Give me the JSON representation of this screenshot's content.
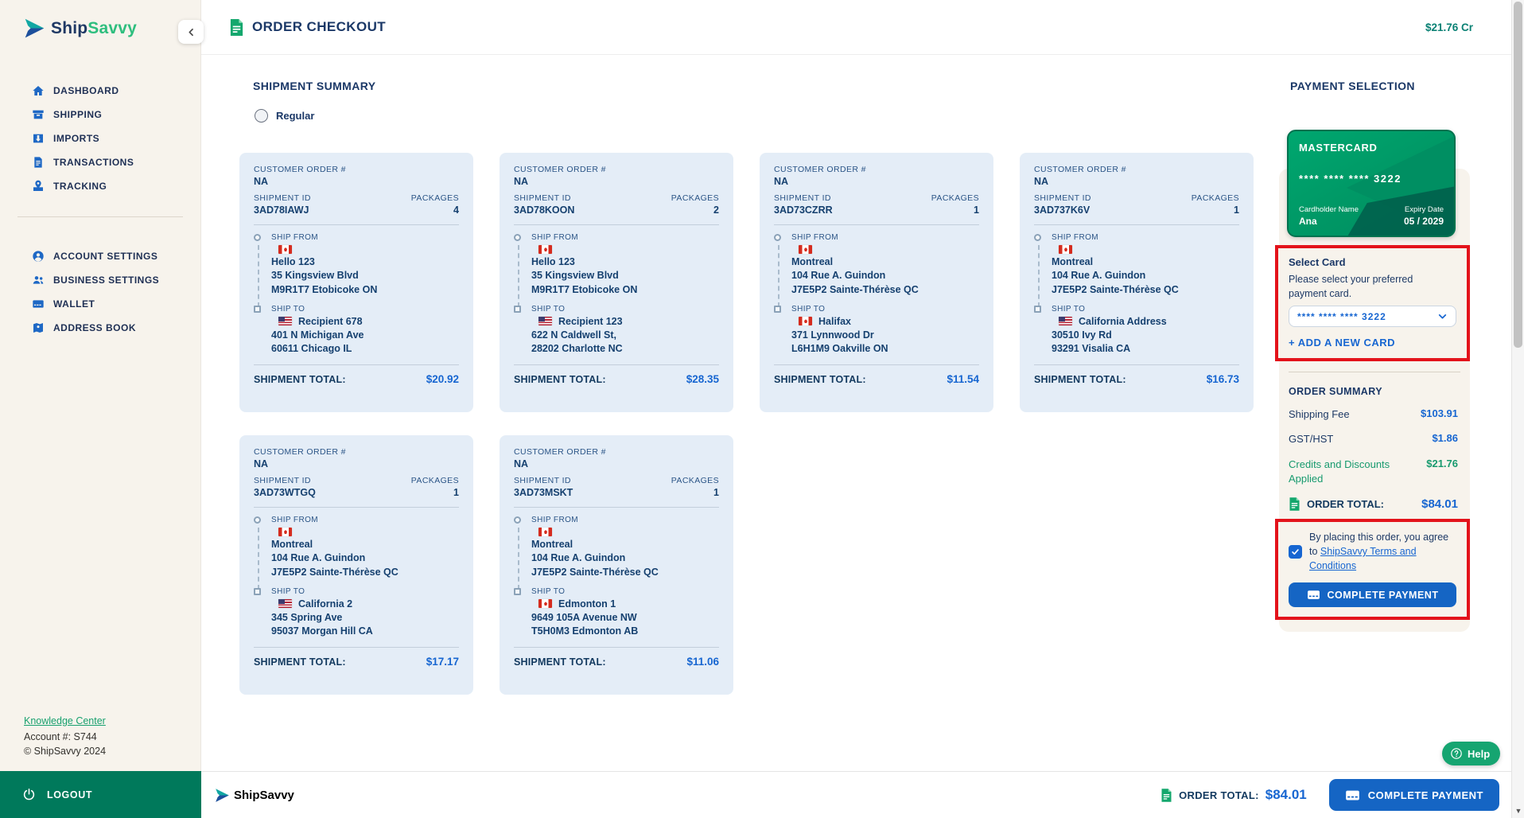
{
  "colors": {
    "brand_navy": "#1F3864",
    "brand_green": "#2EBE7E",
    "accent_blue": "#1766D1",
    "icon_blue": "#1E68C5",
    "success_green": "#179A6E",
    "alert_red": "#E3131B",
    "logout_bar_green": "#00795B",
    "credit_card_green": "#009E68",
    "sidebar_cream": "#F7F3EC",
    "shipment_card_blue": "#E4EDF7",
    "credit_balance_teal": "#0A8174"
  },
  "brand": {
    "name_ship": "Ship",
    "name_savvy": "Savvy"
  },
  "sidebar": {
    "nav_items": [
      {
        "label": "DASHBOARD",
        "icon": "home"
      },
      {
        "label": "SHIPPING",
        "icon": "shipping-box"
      },
      {
        "label": "IMPORTS",
        "icon": "imports-box"
      },
      {
        "label": "TRANSACTIONS",
        "icon": "transactions-doc"
      },
      {
        "label": "TRACKING",
        "icon": "tracking-pin"
      }
    ],
    "settings_items": [
      {
        "label": "ACCOUNT SETTINGS",
        "icon": "account-user"
      },
      {
        "label": "BUSINESS SETTINGS",
        "icon": "business-users"
      },
      {
        "label": "WALLET",
        "icon": "wallet-card"
      },
      {
        "label": "ADDRESS BOOK",
        "icon": "address-book"
      }
    ],
    "footer": {
      "knowledge_center": "Knowledge Center",
      "account_number": "Account #: S744",
      "copyright": "© ShipSavvy 2024"
    },
    "logout_label": "LOGOUT"
  },
  "header": {
    "title": "ORDER CHECKOUT",
    "credit_balance": "$21.76 Cr"
  },
  "shipment_summary": {
    "title": "SHIPMENT SUMMARY",
    "radio_label": "Regular",
    "labels": {
      "customer_order": "CUSTOMER ORDER #",
      "shipment_id": "SHIPMENT ID",
      "packages": "PACKAGES",
      "ship_from": "SHIP FROM",
      "ship_to": "SHIP TO",
      "shipment_total": "SHIPMENT TOTAL:"
    },
    "cards": [
      {
        "customer_order": "NA",
        "shipment_id": "3AD78IAWJ",
        "packages": "4",
        "from_country": "ca",
        "from_lines": [
          "Hello 123",
          "35 Kingsview Blvd",
          "M9R1T7 Etobicoke ON"
        ],
        "to_country": "us",
        "to_name": "Recipient 678",
        "to_lines": [
          "401 N Michigan Ave",
          "60611 Chicago IL"
        ],
        "total": "$20.92"
      },
      {
        "customer_order": "NA",
        "shipment_id": "3AD78KOON",
        "packages": "2",
        "from_country": "ca",
        "from_lines": [
          "Hello 123",
          "35 Kingsview Blvd",
          "M9R1T7 Etobicoke ON"
        ],
        "to_country": "us",
        "to_name": "Recipient 123",
        "to_lines": [
          "622 N Caldwell St,",
          "28202 Charlotte NC"
        ],
        "total": "$28.35"
      },
      {
        "customer_order": "NA",
        "shipment_id": "3AD73CZRR",
        "packages": "1",
        "from_country": "ca",
        "from_lines": [
          "Montreal",
          "104 Rue A. Guindon",
          "J7E5P2 Sainte-Thérèse QC"
        ],
        "to_country": "ca",
        "to_name": "Halifax",
        "to_lines": [
          "371 Lynnwood Dr",
          "L6H1M9 Oakville ON"
        ],
        "total": "$11.54"
      },
      {
        "customer_order": "NA",
        "shipment_id": "3AD737K6V",
        "packages": "1",
        "from_country": "ca",
        "from_lines": [
          "Montreal",
          "104 Rue A. Guindon",
          "J7E5P2 Sainte-Thérèse QC"
        ],
        "to_country": "us",
        "to_name": "California Address",
        "to_lines": [
          "30510 Ivy Rd",
          "93291 Visalia CA"
        ],
        "total": "$16.73"
      },
      {
        "customer_order": "NA",
        "shipment_id": "3AD73WTGQ",
        "packages": "1",
        "from_country": "ca",
        "from_lines": [
          "Montreal",
          "104 Rue A. Guindon",
          "J7E5P2 Sainte-Thérèse QC"
        ],
        "to_country": "us",
        "to_name": "California 2",
        "to_lines": [
          "345 Spring Ave",
          "95037 Morgan Hill CA"
        ],
        "total": "$17.17"
      },
      {
        "customer_order": "NA",
        "shipment_id": "3AD73MSKT",
        "packages": "1",
        "from_country": "ca",
        "from_lines": [
          "Montreal",
          "104 Rue A. Guindon",
          "J7E5P2 Sainte-Thérèse QC"
        ],
        "to_country": "ca",
        "to_name": "Edmonton 1",
        "to_lines": [
          "9649 105A Avenue NW",
          "T5H0M3 Edmonton AB"
        ],
        "total": "$11.06"
      }
    ]
  },
  "payment": {
    "title": "PAYMENT SELECTION",
    "credit_card": {
      "brand": "MASTERCARD",
      "number_masked": "**** **** **** 3222",
      "cardholder_label": "Cardholder Name",
      "cardholder_name": "Ana",
      "expiry_label": "Expiry Date",
      "expiry": "05 / 2029"
    },
    "select_card": {
      "title": "Select Card",
      "description": "Please select your preferred payment card.",
      "dropdown_value": "**** **** **** 3222",
      "add_card_label": "+ ADD A NEW CARD"
    },
    "order_summary": {
      "title": "ORDER SUMMARY",
      "rows": [
        {
          "label": "Shipping Fee",
          "value": "$103.91",
          "type": "normal"
        },
        {
          "label": "GST/HST",
          "value": "$1.86",
          "type": "normal"
        },
        {
          "label": "Credits and Discounts Applied",
          "value": "$21.76",
          "type": "credit"
        }
      ],
      "total_label": "ORDER TOTAL:",
      "total_value": "$84.01"
    },
    "agreement": {
      "checked": true,
      "text_before": "By placing this order, you agree to ",
      "link_text": "ShipSavvy Terms and Conditions"
    },
    "complete_payment_label": "COMPLETE PAYMENT"
  },
  "footer_bar": {
    "order_total_label": "ORDER TOTAL:",
    "order_total_value": "$84.01",
    "complete_payment_label": "COMPLETE PAYMENT"
  },
  "help": {
    "label": "Help"
  }
}
